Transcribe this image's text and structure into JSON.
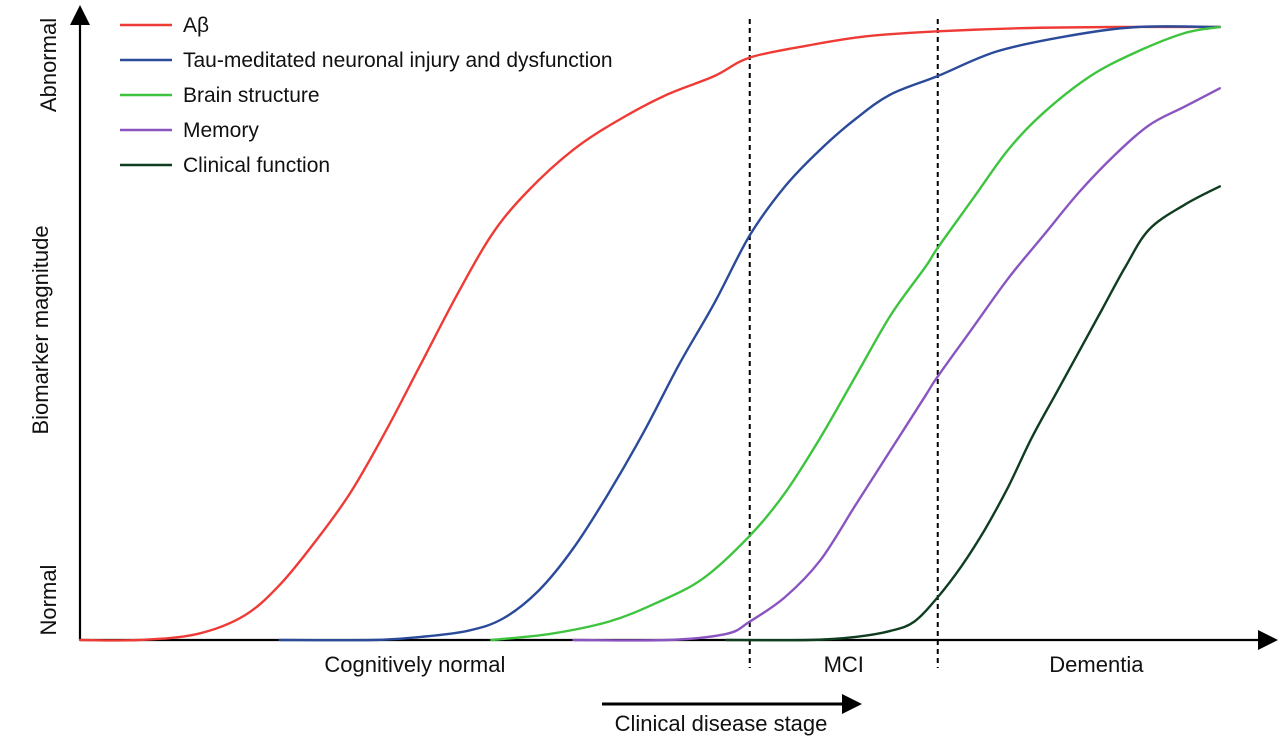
{
  "chart_data": {
    "type": "line",
    "title": "",
    "xlabel": "Clinical disease stage",
    "ylabel": "Biomarker magnitude",
    "y_ticks": {
      "low": "Normal",
      "high": "Abnormal"
    },
    "stages": [
      "Cognitively normal",
      "MCI",
      "Dementia"
    ],
    "stage_boundaries": [
      57,
      73
    ],
    "xlim": [
      0,
      100
    ],
    "ylim": [
      0,
      100
    ],
    "grid": false,
    "legend_position": "top-left",
    "series": [
      {
        "name": "Aβ",
        "color": "#ef3b36",
        "points": [
          [
            0,
            0
          ],
          [
            5,
            0
          ],
          [
            10,
            1
          ],
          [
            14,
            4
          ],
          [
            17,
            9
          ],
          [
            20,
            16
          ],
          [
            23,
            24
          ],
          [
            26,
            34
          ],
          [
            29,
            45
          ],
          [
            32,
            56
          ],
          [
            35,
            66
          ],
          [
            38,
            73
          ],
          [
            42,
            80
          ],
          [
            46,
            85
          ],
          [
            50,
            89
          ],
          [
            54,
            92
          ],
          [
            57,
            95
          ],
          [
            62,
            97
          ],
          [
            67,
            98.5
          ],
          [
            73,
            99.3
          ],
          [
            80,
            99.8
          ],
          [
            88,
            100
          ],
          [
            97,
            100
          ]
        ]
      },
      {
        "name": "Tau-meditated neuronal injury and dysfunction",
        "color": "#2b4a9a",
        "points": [
          [
            17,
            0
          ],
          [
            25,
            0
          ],
          [
            29,
            0.5
          ],
          [
            33,
            1.5
          ],
          [
            36,
            3.5
          ],
          [
            39,
            8
          ],
          [
            42,
            15
          ],
          [
            45,
            24
          ],
          [
            48,
            34
          ],
          [
            51,
            45
          ],
          [
            54,
            55
          ],
          [
            57,
            66
          ],
          [
            60,
            74
          ],
          [
            63,
            80
          ],
          [
            66,
            85
          ],
          [
            69,
            89
          ],
          [
            73,
            92
          ],
          [
            78,
            96
          ],
          [
            84,
            98.5
          ],
          [
            90,
            100
          ],
          [
            97,
            100
          ]
        ]
      },
      {
        "name": "Brain structure",
        "color": "#3ec43e",
        "points": [
          [
            35,
            0
          ],
          [
            40,
            1
          ],
          [
            45,
            3
          ],
          [
            49,
            6
          ],
          [
            53,
            10
          ],
          [
            57,
            17
          ],
          [
            60,
            24
          ],
          [
            63,
            33
          ],
          [
            66,
            43
          ],
          [
            69,
            53
          ],
          [
            72,
            61
          ],
          [
            73,
            64
          ],
          [
            76,
            72
          ],
          [
            79,
            80
          ],
          [
            82,
            86
          ],
          [
            86,
            92
          ],
          [
            90,
            96
          ],
          [
            94,
            99
          ],
          [
            97,
            100
          ]
        ]
      },
      {
        "name": "Memory",
        "color": "#8a55c0",
        "points": [
          [
            42,
            0
          ],
          [
            50,
            0
          ],
          [
            55,
            1
          ],
          [
            57,
            3
          ],
          [
            60,
            7
          ],
          [
            63,
            13
          ],
          [
            66,
            22
          ],
          [
            69,
            31
          ],
          [
            72,
            40
          ],
          [
            73,
            43
          ],
          [
            76,
            51
          ],
          [
            79,
            59
          ],
          [
            82,
            66
          ],
          [
            85,
            73
          ],
          [
            88,
            79
          ],
          [
            91,
            84
          ],
          [
            94,
            87
          ],
          [
            97,
            90
          ]
        ]
      },
      {
        "name": "Clinical function",
        "color": "#0f3d1f",
        "points": [
          [
            55,
            0
          ],
          [
            62,
            0
          ],
          [
            66,
            0.5
          ],
          [
            69,
            1.5
          ],
          [
            71,
            3
          ],
          [
            73,
            7
          ],
          [
            75,
            12
          ],
          [
            77,
            18
          ],
          [
            79,
            25
          ],
          [
            81,
            33
          ],
          [
            83,
            40
          ],
          [
            85,
            47
          ],
          [
            87,
            54
          ],
          [
            89,
            61
          ],
          [
            91,
            67
          ],
          [
            94,
            71
          ],
          [
            97,
            74
          ]
        ]
      }
    ]
  }
}
